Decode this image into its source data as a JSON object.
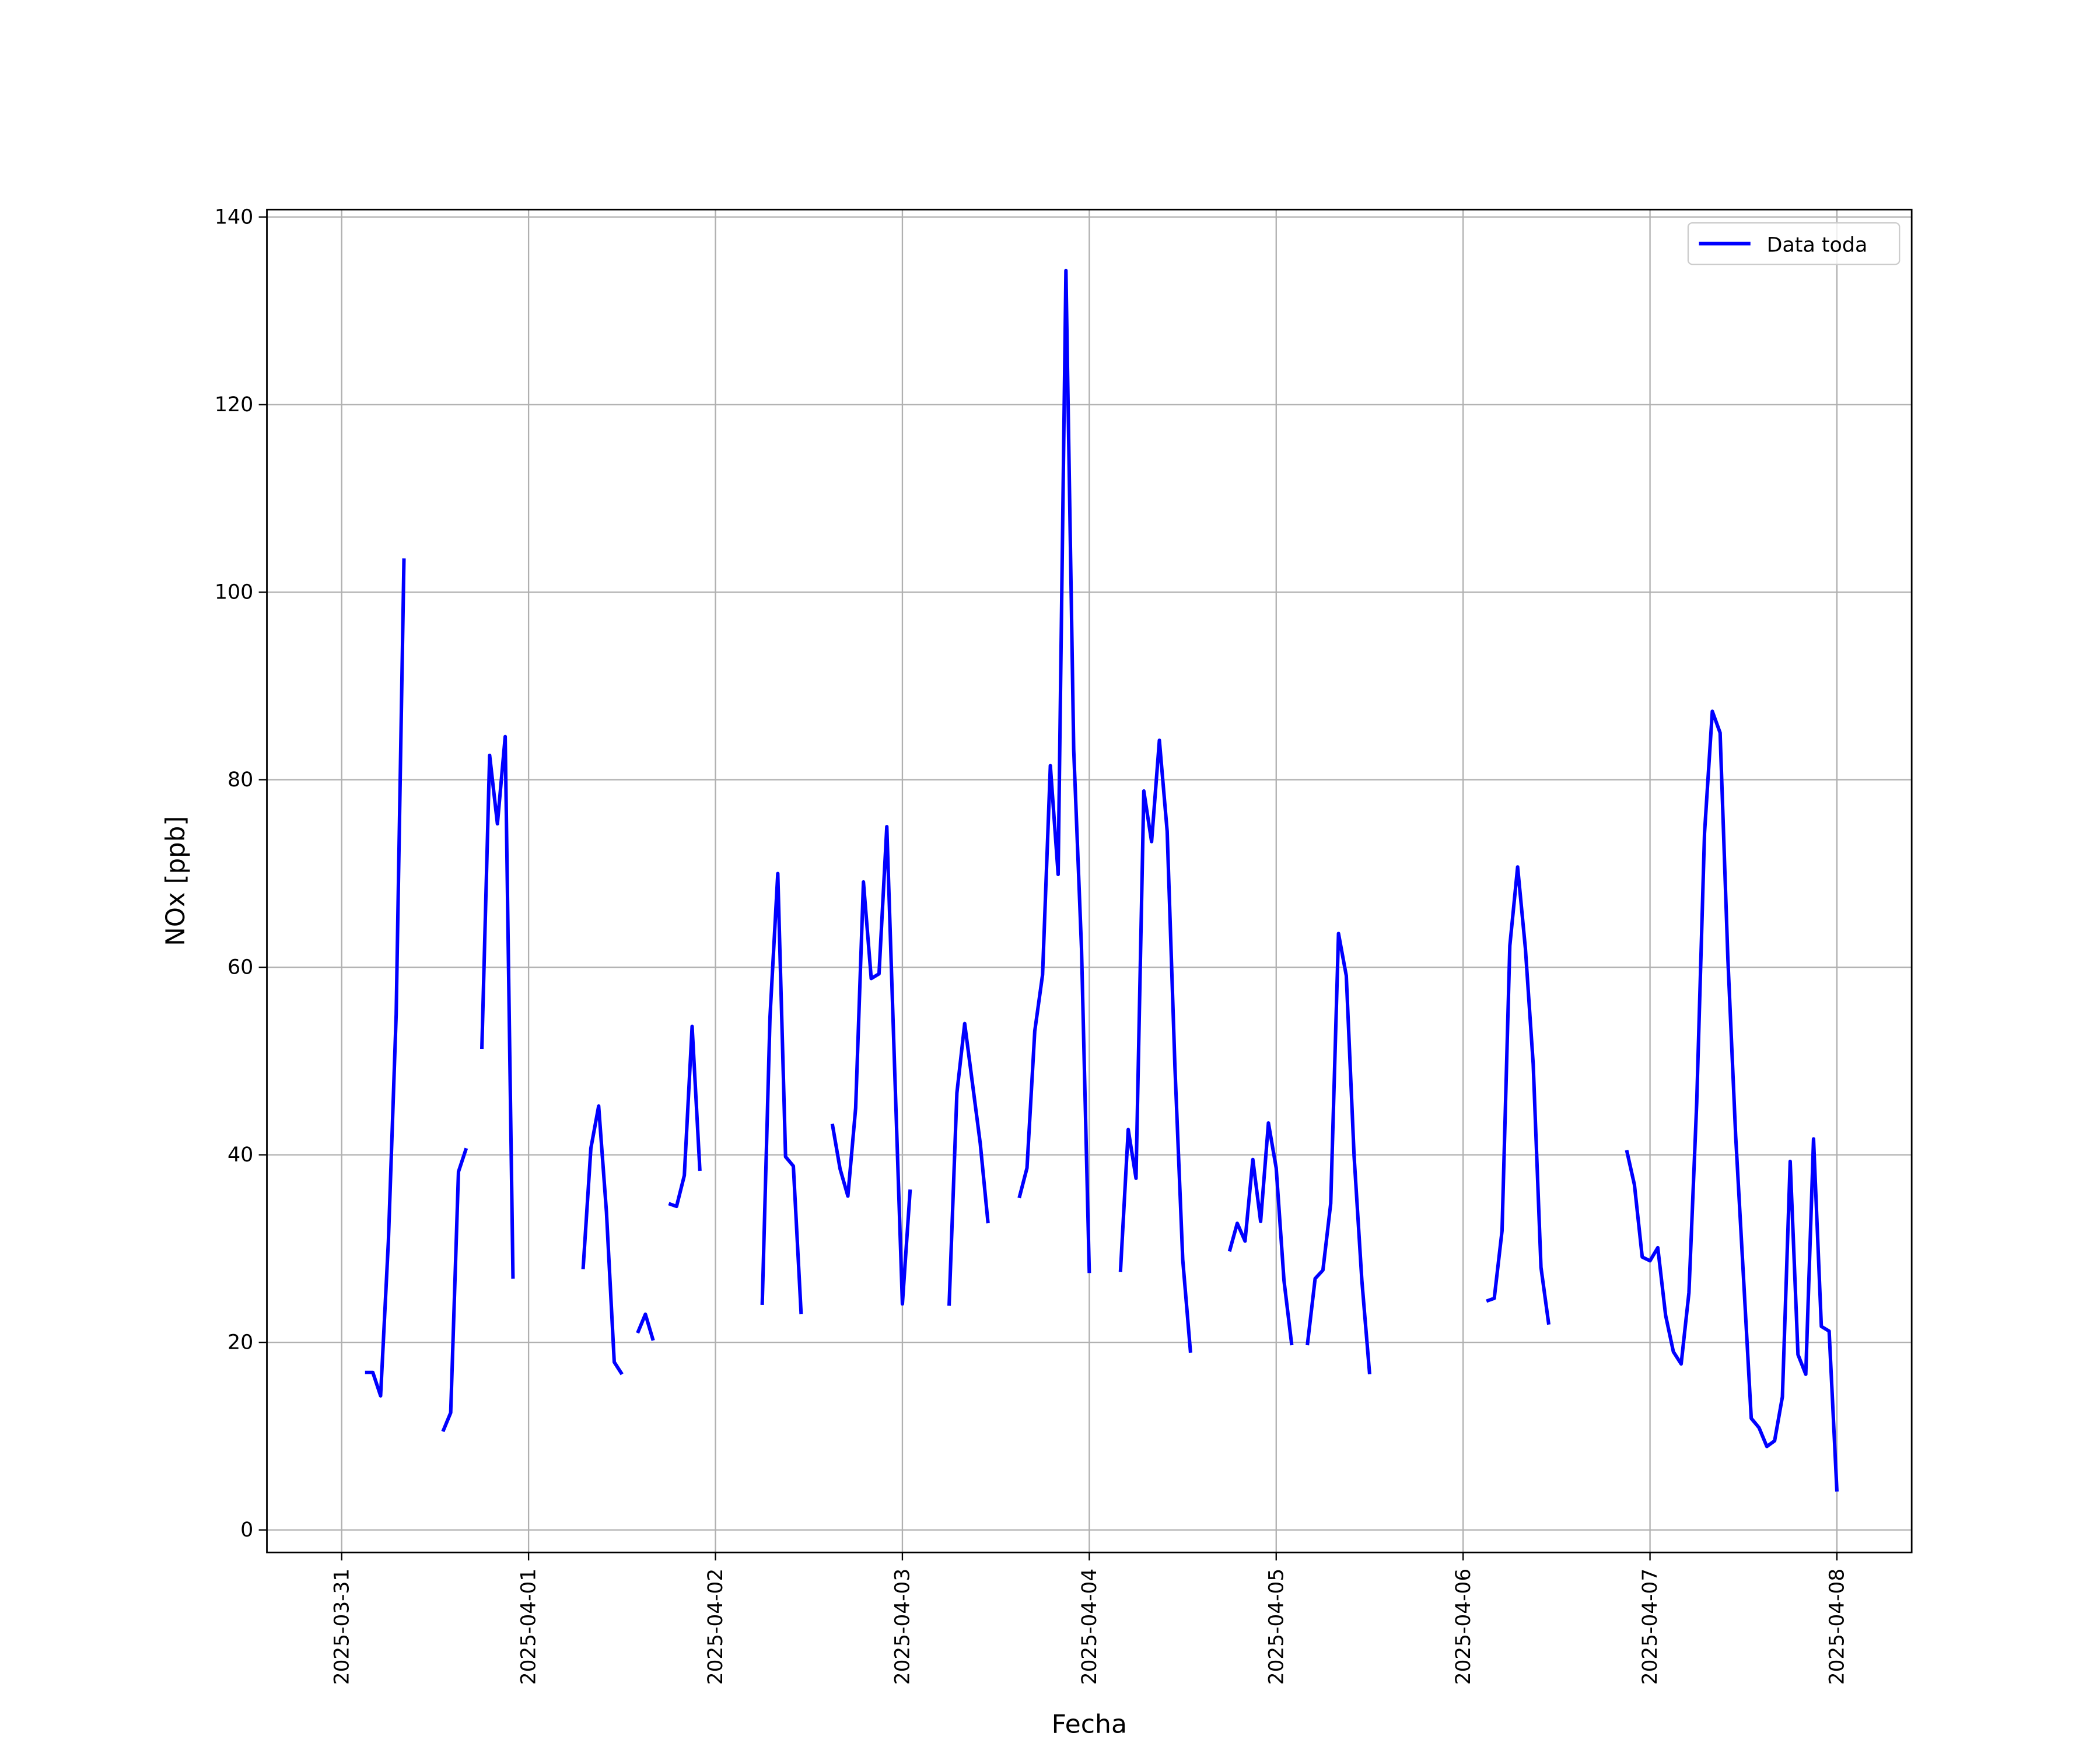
{
  "chart_data": {
    "type": "line",
    "xlabel": "Fecha",
    "ylabel": "NOx [ppb]",
    "x": [
      "2025-03-31 00:00",
      "2025-03-31 03:00",
      "2025-03-31 04:00",
      "2025-03-31 05:00",
      "2025-03-31 06:00",
      "2025-03-31 07:00",
      "2025-03-31 08:00",
      "2025-03-31 09:00",
      "2025-03-31 13:00",
      "2025-03-31 14:00",
      "2025-03-31 15:00",
      "2025-03-31 16:00",
      "2025-03-31 17:00",
      "2025-03-31 18:00",
      "2025-03-31 19:00",
      "2025-03-31 20:00",
      "2025-03-31 21:00",
      "2025-03-31 22:00",
      "2025-03-31 23:00",
      "2025-04-01 07:00",
      "2025-04-01 08:00",
      "2025-04-01 09:00",
      "2025-04-01 10:00",
      "2025-04-01 11:00",
      "2025-04-01 12:00",
      "2025-04-01 13:00",
      "2025-04-01 14:00",
      "2025-04-01 15:00",
      "2025-04-01 16:00",
      "2025-04-01 17:00",
      "2025-04-01 18:00",
      "2025-04-01 19:00",
      "2025-04-01 20:00",
      "2025-04-01 21:00",
      "2025-04-01 22:00",
      "2025-04-01 23:00",
      "2025-04-02 06:00",
      "2025-04-02 07:00",
      "2025-04-02 08:00",
      "2025-04-02 09:00",
      "2025-04-02 10:00",
      "2025-04-02 11:00",
      "2025-04-02 12:00",
      "2025-04-02 15:00",
      "2025-04-02 16:00",
      "2025-04-02 17:00",
      "2025-04-02 18:00",
      "2025-04-02 19:00",
      "2025-04-02 20:00",
      "2025-04-02 21:00",
      "2025-04-02 22:00",
      "2025-04-02 23:00",
      "2025-04-03 00:00",
      "2025-04-03 01:00",
      "2025-04-03 02:00",
      "2025-04-03 06:00",
      "2025-04-03 07:00",
      "2025-04-03 08:00",
      "2025-04-03 09:00",
      "2025-04-03 10:00",
      "2025-04-03 11:00",
      "2025-04-03 12:00",
      "2025-04-03 15:00",
      "2025-04-03 16:00",
      "2025-04-03 17:00",
      "2025-04-03 18:00",
      "2025-04-03 19:00",
      "2025-04-03 20:00",
      "2025-04-03 21:00",
      "2025-04-03 22:00",
      "2025-04-03 23:00",
      "2025-04-04 00:00",
      "2025-04-04 01:00",
      "2025-04-04 04:00",
      "2025-04-04 05:00",
      "2025-04-04 06:00",
      "2025-04-04 07:00",
      "2025-04-04 08:00",
      "2025-04-04 09:00",
      "2025-04-04 10:00",
      "2025-04-04 11:00",
      "2025-04-04 12:00",
      "2025-04-04 13:00",
      "2025-04-04 14:00",
      "2025-04-04 18:00",
      "2025-04-04 19:00",
      "2025-04-04 20:00",
      "2025-04-04 21:00",
      "2025-04-04 22:00",
      "2025-04-04 23:00",
      "2025-04-05 00:00",
      "2025-04-05 01:00",
      "2025-04-05 02:00",
      "2025-04-05 03:00",
      "2025-04-05 04:00",
      "2025-04-05 05:00",
      "2025-04-05 06:00",
      "2025-04-05 07:00",
      "2025-04-05 08:00",
      "2025-04-05 09:00",
      "2025-04-05 10:00",
      "2025-04-05 11:00",
      "2025-04-05 12:00",
      "2025-04-05 13:00",
      "2025-04-06 03:00",
      "2025-04-06 04:00",
      "2025-04-06 05:00",
      "2025-04-06 06:00",
      "2025-04-06 07:00",
      "2025-04-06 08:00",
      "2025-04-06 09:00",
      "2025-04-06 10:00",
      "2025-04-06 11:00",
      "2025-04-06 12:00",
      "2025-04-06 21:00",
      "2025-04-06 22:00",
      "2025-04-06 23:00",
      "2025-04-07 00:00",
      "2025-04-07 01:00",
      "2025-04-07 02:00",
      "2025-04-07 03:00",
      "2025-04-07 04:00",
      "2025-04-07 05:00",
      "2025-04-07 06:00",
      "2025-04-07 07:00",
      "2025-04-07 08:00",
      "2025-04-07 09:00",
      "2025-04-07 10:00",
      "2025-04-07 11:00",
      "2025-04-07 12:00",
      "2025-04-07 13:00",
      "2025-04-07 14:00",
      "2025-04-07 15:00",
      "2025-04-07 16:00",
      "2025-04-07 17:00",
      "2025-04-07 18:00",
      "2025-04-07 19:00",
      "2025-04-07 20:00",
      "2025-04-07 21:00",
      "2025-04-07 22:00",
      "2025-04-07 23:00",
      "2025-04-08 00:00"
    ],
    "series": [
      {
        "name": "Data toda",
        "color": "#0000ff",
        "values": [
          null,
          16.8,
          16.8,
          14.3,
          30.8,
          55,
          103.6,
          null,
          10.5,
          12.5,
          38.2,
          40.7,
          null,
          51.3,
          82.6,
          75.3,
          84.6,
          26.8,
          null,
          27.8,
          40.7,
          45.2,
          33.9,
          17.9,
          16.6,
          null,
          21,
          23,
          20.2,
          null,
          34.8,
          34.5,
          37.8,
          53.7,
          38.3,
          null,
          24,
          54.7,
          70,
          39.8,
          38.8,
          23,
          null,
          43.3,
          38.5,
          35.6,
          45,
          69.1,
          58.8,
          59.3,
          75,
          49.3,
          24.1,
          36.3,
          null,
          23.9,
          46.6,
          54,
          47.6,
          41.2,
          32.7,
          null,
          35.4,
          38.6,
          53.2,
          59.2,
          81.5,
          69.9,
          134.3,
          83.2,
          62,
          27.4,
          null,
          27.5,
          42.7,
          37.5,
          78.8,
          73.4,
          84.2,
          74.5,
          49.3,
          28.8,
          18.9,
          null,
          29.7,
          32.7,
          30.8,
          39.5,
          32.9,
          43.4,
          38.6,
          26.6,
          19.7,
          null,
          19.7,
          26.8,
          27.7,
          34.8,
          63.6,
          59.1,
          39.9,
          26.6,
          16.6,
          null,
          24.4,
          24.7,
          31.9,
          62.3,
          70.7,
          62,
          49.7,
          28,
          21.9,
          null,
          40.5,
          36.8,
          29.1,
          28.7,
          30.1,
          22.9,
          19,
          17.7,
          25.3,
          45.6,
          74.3,
          87.3,
          85,
          60.9,
          42,
          27,
          11.9,
          10.9,
          8.9,
          9.5,
          14.2,
          39.3,
          18.7,
          16.6,
          41.7,
          21.7,
          21.2,
          4.1
        ]
      }
    ],
    "xticks": [
      "2025-03-31",
      "2025-04-01",
      "2025-04-02",
      "2025-04-03",
      "2025-04-04",
      "2025-04-05",
      "2025-04-06",
      "2025-04-07",
      "2025-04-08"
    ],
    "ylim": [
      -2.4,
      140.8
    ],
    "yticks": [
      0,
      20,
      40,
      60,
      80,
      100,
      120,
      140
    ],
    "grid": true,
    "legend": "upper-right"
  }
}
